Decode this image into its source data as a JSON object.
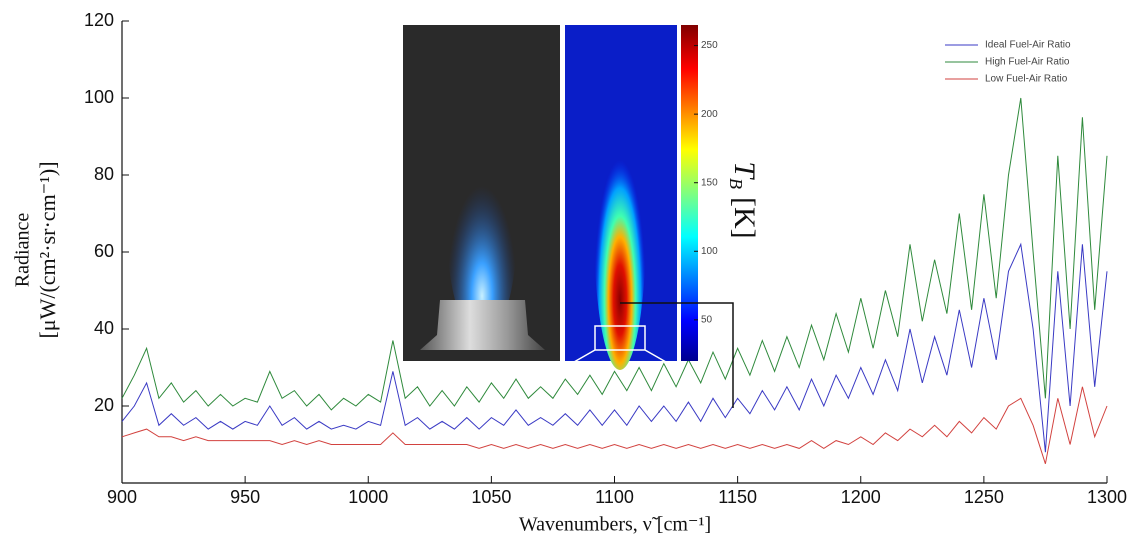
{
  "chart_data": {
    "type": "line",
    "y_label_1": "Radiance",
    "y_label_2": "[μW/(cm²·sr·cm⁻¹)]",
    "x_label": "Wavenumbers, ν̃  [cm⁻¹]",
    "xlim": [
      900,
      1300
    ],
    "xticks": [
      900,
      950,
      1000,
      1050,
      1100,
      1150,
      1200,
      1250,
      1300
    ],
    "ylim": [
      0,
      120
    ],
    "yticks": [
      20,
      40,
      60,
      80,
      100,
      120
    ],
    "legend": "upper right",
    "x": [
      900,
      905,
      910,
      915,
      920,
      925,
      930,
      935,
      940,
      945,
      950,
      955,
      960,
      965,
      970,
      975,
      980,
      985,
      990,
      995,
      1000,
      1005,
      1010,
      1015,
      1020,
      1025,
      1030,
      1035,
      1040,
      1045,
      1050,
      1055,
      1060,
      1065,
      1070,
      1075,
      1080,
      1085,
      1090,
      1095,
      1100,
      1105,
      1110,
      1115,
      1120,
      1125,
      1130,
      1135,
      1140,
      1145,
      1150,
      1155,
      1160,
      1165,
      1170,
      1175,
      1180,
      1185,
      1190,
      1195,
      1200,
      1205,
      1210,
      1215,
      1220,
      1225,
      1230,
      1235,
      1240,
      1245,
      1250,
      1255,
      1260,
      1265,
      1270,
      1275,
      1280,
      1285,
      1290,
      1295,
      1300
    ],
    "series": [
      {
        "name": "Ideal Fuel-Air Ratio",
        "color": "#3a3ac4",
        "values": [
          16,
          20,
          26,
          15,
          18,
          15,
          17,
          14,
          16,
          14,
          16,
          15,
          20,
          15,
          17,
          14,
          16,
          14,
          15,
          14,
          16,
          15,
          29,
          15,
          17,
          14,
          16,
          14,
          17,
          14,
          17,
          15,
          19,
          15,
          17,
          15,
          18,
          15,
          19,
          15,
          19,
          15,
          20,
          16,
          20,
          16,
          21,
          16,
          22,
          17,
          22,
          18,
          24,
          19,
          25,
          19,
          27,
          20,
          28,
          22,
          30,
          23,
          32,
          24,
          40,
          26,
          38,
          28,
          45,
          30,
          48,
          32,
          55,
          62,
          40,
          8,
          55,
          20,
          62,
          25,
          55
        ]
      },
      {
        "name": "High Fuel-Air Ratio",
        "color": "#2f8a3c",
        "values": [
          22,
          28,
          35,
          22,
          26,
          21,
          24,
          20,
          23,
          20,
          22,
          21,
          29,
          22,
          24,
          20,
          23,
          19,
          22,
          20,
          23,
          21,
          37,
          22,
          25,
          20,
          24,
          20,
          25,
          21,
          26,
          22,
          27,
          22,
          25,
          22,
          27,
          23,
          28,
          23,
          29,
          24,
          30,
          24,
          31,
          25,
          32,
          26,
          34,
          27,
          35,
          28,
          37,
          29,
          38,
          30,
          41,
          32,
          44,
          34,
          48,
          35,
          50,
          38,
          62,
          42,
          58,
          44,
          70,
          45,
          75,
          48,
          80,
          100,
          60,
          22,
          85,
          40,
          95,
          45,
          85
        ]
      },
      {
        "name": "Low Fuel-Air Ratio",
        "color": "#d2423f",
        "values": [
          12,
          13,
          14,
          12,
          12,
          11,
          12,
          11,
          11,
          11,
          11,
          11,
          11,
          10,
          11,
          10,
          11,
          10,
          10,
          10,
          10,
          10,
          13,
          10,
          10,
          10,
          10,
          10,
          10,
          9,
          10,
          9,
          10,
          9,
          10,
          9,
          10,
          9,
          10,
          9,
          10,
          9,
          10,
          9,
          10,
          9,
          10,
          9,
          10,
          9,
          10,
          9,
          10,
          9,
          10,
          9,
          11,
          9,
          11,
          10,
          12,
          10,
          13,
          11,
          14,
          12,
          15,
          12,
          16,
          13,
          17,
          14,
          20,
          22,
          15,
          5,
          22,
          10,
          25,
          12,
          20
        ]
      }
    ],
    "inset": {
      "colorbar_label": "T",
      "colorbar_label_sub": "B",
      "colorbar_unit": "[K]",
      "clim": [
        20,
        265
      ],
      "cticks": [
        50,
        100,
        150,
        200,
        250
      ]
    }
  }
}
